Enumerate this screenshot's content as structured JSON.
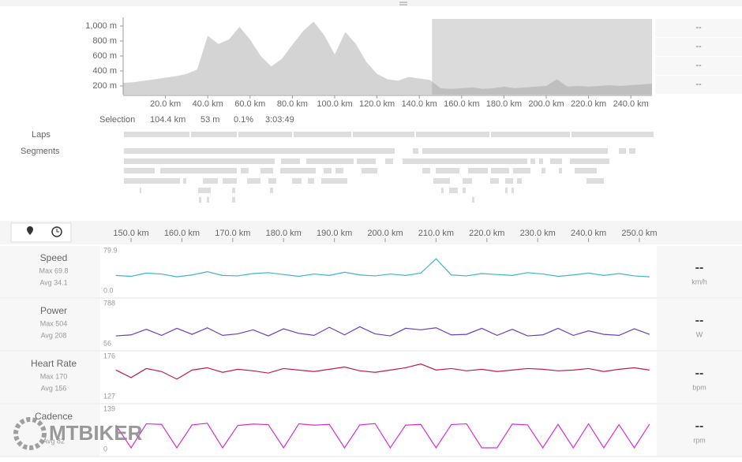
{
  "chart_data": [
    {
      "type": "area",
      "color": "#d4d4d4",
      "x": [
        0,
        5,
        10,
        15,
        20,
        25,
        30,
        35,
        40,
        45,
        50,
        55,
        60,
        65,
        70,
        75,
        80,
        85,
        90,
        95,
        100,
        105,
        110,
        115,
        120,
        125,
        130,
        135,
        140,
        145,
        150,
        155,
        160,
        165,
        170,
        175,
        180,
        185,
        190,
        195,
        200,
        205,
        210,
        215,
        220,
        225,
        230,
        235,
        240,
        245,
        250
      ],
      "values": [
        240,
        250,
        270,
        290,
        310,
        330,
        360,
        420,
        870,
        760,
        820,
        990,
        820,
        600,
        460,
        560,
        750,
        930,
        1060,
        880,
        620,
        920,
        760,
        520,
        360,
        290,
        270,
        320,
        300,
        280,
        170,
        160,
        170,
        180,
        160,
        170,
        190,
        170,
        180,
        190,
        200,
        290,
        190,
        200,
        190,
        200,
        210,
        200,
        210,
        220,
        230
      ],
      "xlim": [
        0,
        250
      ],
      "ylim": [
        84,
        1116
      ],
      "xticks": [
        {
          "value": 20,
          "label": "20.0 km"
        },
        {
          "value": 40,
          "label": "40.0 km"
        },
        {
          "value": 60,
          "label": "60.0 km"
        },
        {
          "value": 80,
          "label": "80.0 km"
        },
        {
          "value": 100,
          "label": "100.0 km"
        },
        {
          "value": 120,
          "label": "120.0 km"
        },
        {
          "value": 140,
          "label": "140.0 km"
        },
        {
          "value": 160,
          "label": "160.0 km"
        },
        {
          "value": 180,
          "label": "180.0 km"
        },
        {
          "value": 200,
          "label": "200.0 km"
        },
        {
          "value": 220,
          "label": "220.0 km"
        },
        {
          "value": 240,
          "label": "240.0 km"
        }
      ],
      "yticks": [
        {
          "value": 200,
          "label": "200 m"
        },
        {
          "value": 400,
          "label": "400 m"
        },
        {
          "value": 600,
          "label": "600 m"
        },
        {
          "value": 800,
          "label": "800 m"
        },
        {
          "value": 1000,
          "label": "1,000 m"
        }
      ],
      "highlight": [
        146,
        250
      ]
    },
    {
      "type": "line",
      "title": "Speed",
      "max_label": "Max 69.8",
      "avg_label": "Avg 34.1",
      "unit": "km/h",
      "current": "--",
      "color": "#3fb3cf",
      "values": [
        30,
        28,
        35,
        33,
        27,
        31,
        38,
        30,
        29,
        34,
        36,
        32,
        28,
        33,
        30,
        37,
        31,
        29,
        33,
        30,
        35,
        66,
        31,
        29,
        34,
        32,
        30,
        36,
        33,
        28,
        31,
        35,
        30,
        34,
        29,
        27
      ],
      "ylim": [
        0,
        79.9
      ],
      "yticks": [
        {
          "value": 0,
          "label": "0.0"
        },
        79.9
      ]
    },
    {
      "type": "line",
      "title": "Power",
      "max_label": "Max 504",
      "avg_label": "Avg 208",
      "unit": "W",
      "current": "--",
      "color": "#6a3fc4",
      "values": [
        180,
        200,
        310,
        190,
        330,
        210,
        340,
        190,
        220,
        300,
        180,
        320,
        230,
        190,
        350,
        200,
        360,
        220,
        180,
        330,
        300,
        340,
        200,
        210,
        330,
        190,
        310,
        180,
        200,
        330,
        190,
        280,
        210,
        190,
        320,
        210
      ],
      "ylim": [
        56,
        788
      ],
      "yticks": [
        56,
        788
      ]
    },
    {
      "type": "line",
      "title": "Heart Rate",
      "max_label": "Max 170",
      "avg_label": "Avg 156",
      "unit": "bpm",
      "current": "--",
      "color": "#c2185b",
      "values": [
        160,
        150,
        162,
        158,
        148,
        160,
        163,
        157,
        161,
        159,
        156,
        162,
        160,
        158,
        161,
        164,
        159,
        157,
        160,
        163,
        168,
        160,
        162,
        159,
        161,
        158,
        160,
        162,
        161,
        159,
        160,
        162,
        158,
        161,
        163,
        160
      ],
      "ylim": [
        127,
        176
      ],
      "yticks": [
        127,
        176
      ]
    },
    {
      "type": "line",
      "title": "Cadence",
      "avg_label": "Avg 82",
      "unit": "rpm",
      "current": "--",
      "color": "#d62fd6",
      "values": [
        85,
        0,
        90,
        88,
        0,
        86,
        92,
        0,
        84,
        89,
        87,
        0,
        90,
        85,
        88,
        0,
        86,
        91,
        0,
        85,
        88,
        0,
        87,
        90,
        0,
        0,
        89,
        86,
        0,
        88,
        0,
        90,
        0,
        87,
        0,
        89
      ],
      "ylim": [
        0,
        139
      ],
      "yticks": [
        0,
        139
      ]
    }
  ],
  "stream_axis": {
    "xlim": [
      144.4,
      252.8
    ],
    "x": [
      147,
      150,
      153,
      156,
      159,
      162,
      165,
      168,
      171,
      174,
      177,
      180,
      183,
      186,
      189,
      192,
      195,
      198,
      201,
      204,
      207,
      210,
      213,
      216,
      219,
      222,
      225,
      228,
      231,
      234,
      237,
      240,
      243,
      246,
      249,
      252
    ],
    "xticks": [
      {
        "value": 150,
        "label": "150.0 km"
      },
      {
        "value": 160,
        "label": "160.0 km"
      },
      {
        "value": 170,
        "label": "170.0 km"
      },
      {
        "value": 180,
        "label": "180.0 km"
      },
      {
        "value": 190,
        "label": "190.0 km"
      },
      {
        "value": 200,
        "label": "200.0 km"
      },
      {
        "value": 210,
        "label": "210.0 km"
      },
      {
        "value": 220,
        "label": "220.0 km"
      },
      {
        "value": 230,
        "label": "230.0 km"
      },
      {
        "value": 240,
        "label": "240.0 km"
      },
      {
        "value": 250,
        "label": "250.0 km"
      }
    ]
  },
  "elevation_side": [
    "--",
    "--",
    "--",
    "--"
  ],
  "selection": {
    "label": "Selection",
    "distance": "104.4 km",
    "elevation": "53 m",
    "grade": "0.1%",
    "time": "3:03:49"
  },
  "laps_label": "Laps",
  "segments_label": "Segments",
  "watermark": "MTBIKER"
}
